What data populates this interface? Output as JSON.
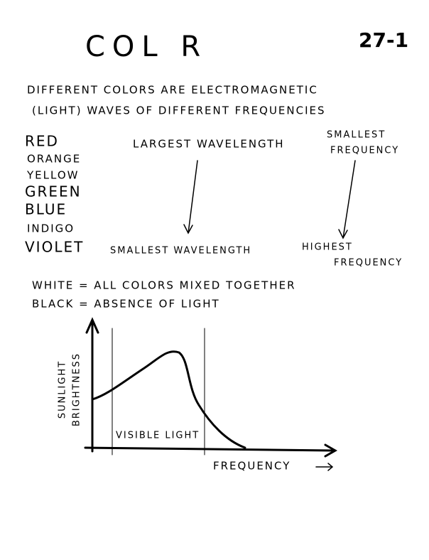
{
  "header": {
    "title": "COL R",
    "page": "27-1"
  },
  "intro": [
    "DIFFERENT COLORS ARE ELECTROMAGNETIC",
    "(LIGHT) WAVES OF DIFFERENT FREQUENCIES"
  ],
  "colors": [
    "RED",
    "ORANGE",
    "YELLOW",
    "GREEN",
    "BLUE",
    "INDIGO",
    "VIOLET"
  ],
  "labels": {
    "largest_wavelength": "LARGEST WAVELENGTH",
    "smallest_frequency": [
      "SMALLEST",
      "FREQUENCY"
    ],
    "smallest_wavelength": "SMALLEST WAVELENGTH",
    "highest_frequency": [
      "HIGHEST",
      "FREQUENCY"
    ]
  },
  "definitions": [
    "WHITE = ALL COLORS MIXED TOGETHER",
    "BLACK = ABSENCE OF LIGHT"
  ],
  "graph": {
    "y_label": [
      "SUNLIGHT",
      "BRIGHTNESS"
    ],
    "band_label": "VISIBLE LIGHT",
    "x_label": "FREQUENCY"
  }
}
